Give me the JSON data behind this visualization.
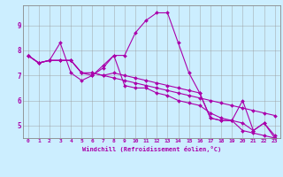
{
  "xlabel": "Windchill (Refroidissement éolien,°C)",
  "background_color": "#cceeff",
  "line_color": "#aa00aa",
  "grid_color": "#999999",
  "xlim": [
    -0.5,
    23.5
  ],
  "ylim": [
    4.5,
    9.8
  ],
  "yticks": [
    5,
    6,
    7,
    8,
    9
  ],
  "xticks": [
    0,
    1,
    2,
    3,
    4,
    5,
    6,
    7,
    8,
    9,
    10,
    11,
    12,
    13,
    14,
    15,
    16,
    17,
    18,
    19,
    20,
    21,
    22,
    23
  ],
  "lines": [
    [
      7.8,
      7.5,
      7.6,
      8.3,
      7.1,
      6.8,
      7.0,
      7.3,
      7.8,
      6.6,
      6.5,
      6.5,
      6.3,
      6.2,
      6.0,
      5.9,
      5.8,
      5.5,
      5.3,
      5.2,
      4.8,
      4.7,
      4.6,
      4.5
    ],
    [
      7.8,
      7.5,
      7.6,
      7.6,
      7.6,
      7.1,
      7.0,
      7.4,
      7.8,
      7.8,
      8.7,
      9.2,
      9.5,
      9.5,
      8.3,
      7.1,
      6.3,
      5.3,
      5.2,
      5.2,
      6.0,
      4.8,
      5.1,
      4.5
    ],
    [
      7.8,
      7.5,
      7.6,
      7.6,
      7.6,
      7.1,
      7.1,
      7.0,
      6.9,
      6.8,
      6.7,
      6.6,
      6.5,
      6.4,
      6.3,
      6.2,
      6.1,
      6.0,
      5.9,
      5.8,
      5.7,
      5.6,
      5.5,
      5.4
    ],
    [
      7.8,
      7.5,
      7.6,
      7.6,
      7.6,
      7.1,
      7.1,
      7.0,
      7.1,
      7.0,
      6.9,
      6.8,
      6.7,
      6.6,
      6.5,
      6.4,
      6.3,
      5.3,
      5.2,
      5.2,
      5.1,
      4.8,
      5.1,
      4.6
    ]
  ]
}
